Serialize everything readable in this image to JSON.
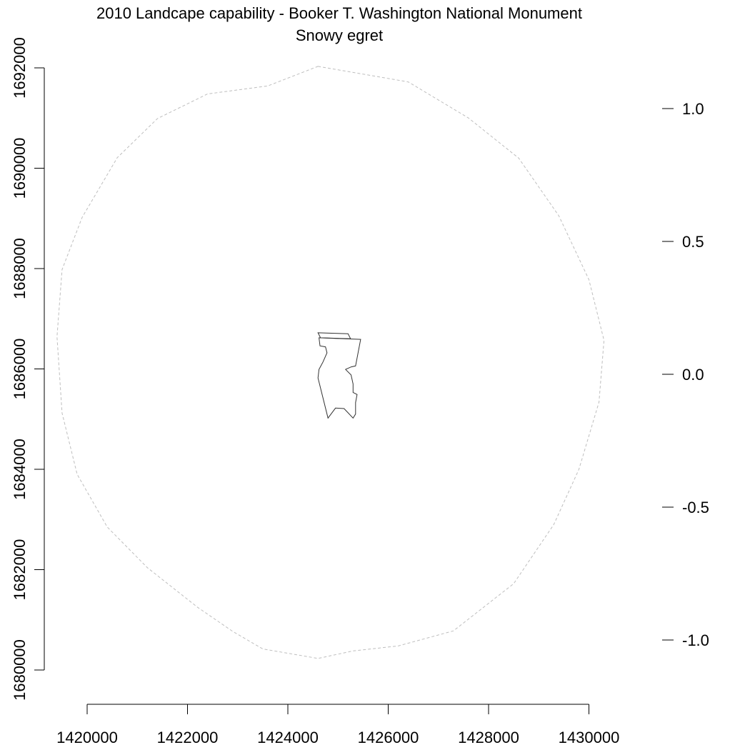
{
  "chart_data": {
    "type": "map",
    "title": "2010 Landcape capability - Booker T. Washington National Monument",
    "subtitle": "Snowy egret",
    "xlabel": "",
    "ylabel": "",
    "x_axis": {
      "range": [
        1419000,
        1430300
      ],
      "ticks": [
        1420000,
        1422000,
        1424000,
        1426000,
        1428000,
        1430000
      ],
      "tick_labels": [
        "1420000",
        "1422000",
        "1424000",
        "1426000",
        "1428000",
        "1430000"
      ]
    },
    "y_axis_left": {
      "range": [
        1679500,
        1692500
      ],
      "ticks": [
        1680000,
        1682000,
        1684000,
        1686000,
        1688000,
        1690000,
        1692000
      ],
      "tick_labels": [
        "1680000",
        "1682000",
        "1684000",
        "1686000",
        "1688000",
        "1690000",
        "1692000"
      ]
    },
    "legend_scale": {
      "position": "right",
      "ticks": [
        1.0,
        0.5,
        0.0,
        -0.5,
        -1.0
      ],
      "tick_labels": [
        "1.0",
        "0.5",
        "0.0",
        "-0.5",
        "-1.0"
      ]
    },
    "grid": false,
    "series": [
      {
        "kind": "buffer-boundary",
        "line_color": "#bebebe",
        "line_style": "dashed",
        "x": [
          1424600,
          1426400,
          1427600,
          1428600,
          1429400,
          1430000,
          1430300,
          1430200,
          1429800,
          1429300,
          1428500,
          1427300,
          1426200,
          1425300,
          1424600,
          1423500,
          1422900,
          1422200,
          1421200,
          1420400,
          1419800,
          1419500,
          1419400,
          1419500,
          1419900,
          1420600,
          1421400,
          1422400,
          1423600,
          1424600
        ],
        "y": [
          1692030,
          1691720,
          1691000,
          1690200,
          1689050,
          1687780,
          1686570,
          1685340,
          1684000,
          1682900,
          1681720,
          1680780,
          1680480,
          1680380,
          1680230,
          1680420,
          1680770,
          1681250,
          1682040,
          1682850,
          1683900,
          1685120,
          1686640,
          1687980,
          1689020,
          1690210,
          1690990,
          1691480,
          1691640,
          1692030
        ]
      },
      {
        "kind": "park-boundary",
        "line_color": "#333333",
        "line_style": "solid",
        "x": [
          1424600,
          1425200,
          1425250,
          1424650,
          1424600
        ],
        "y": [
          1686720,
          1686700,
          1686600,
          1686620,
          1686720
        ]
      },
      {
        "kind": "park-boundary",
        "line_color": "#333333",
        "line_style": "solid",
        "x": [
          1424620,
          1425450,
          1425350,
          1425260,
          1425150,
          1425260,
          1425300,
          1425300,
          1425380,
          1425350,
          1425350,
          1425300,
          1425120,
          1424950,
          1424800,
          1424600,
          1424620,
          1424700,
          1424780,
          1424750,
          1424640,
          1424620
        ],
        "y": [
          1686620,
          1686590,
          1686060,
          1686040,
          1685990,
          1685880,
          1685700,
          1685530,
          1685490,
          1685330,
          1685100,
          1685020,
          1685210,
          1685220,
          1685020,
          1685820,
          1685990,
          1686140,
          1686320,
          1686440,
          1686460,
          1686620
        ]
      }
    ]
  }
}
